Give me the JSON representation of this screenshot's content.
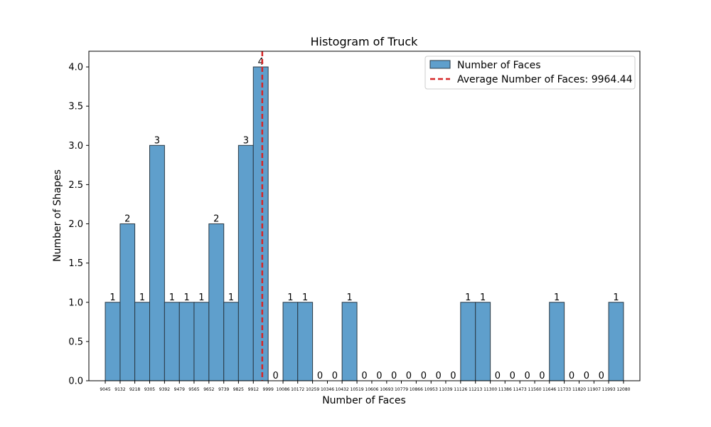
{
  "chart_data": {
    "type": "bar",
    "title": "Histogram of Truck",
    "xlabel": "Number of Faces",
    "ylabel": "Number of Shapes",
    "ylim": [
      0,
      4.2
    ],
    "yticks": [
      "0.0",
      "0.5",
      "1.0",
      "1.5",
      "2.0",
      "2.5",
      "3.0",
      "3.5",
      "4.0"
    ],
    "bin_edges": [
      9045,
      9132,
      9218,
      9305,
      9392,
      9479,
      9565,
      9652,
      9739,
      9825,
      9912,
      9999,
      10086,
      10172,
      10259,
      10346,
      10432,
      10519,
      10606,
      10693,
      10779,
      10866,
      10953,
      11039,
      11126,
      11213,
      11300,
      11386,
      11473,
      11560,
      11646,
      11733,
      11820,
      11907,
      11993,
      12080
    ],
    "values": [
      1,
      2,
      1,
      3,
      1,
      1,
      1,
      2,
      1,
      3,
      4,
      0,
      1,
      1,
      0,
      0,
      1,
      0,
      0,
      0,
      0,
      0,
      0,
      0,
      1,
      1,
      0,
      0,
      0,
      0,
      1,
      0,
      0,
      0,
      1
    ],
    "average": 9964.44,
    "bar_color": "#5f9fcc",
    "bar_edge_color": "#2a3a46",
    "average_line_color": "#d62728",
    "legend": {
      "placement": "top-right",
      "entries": [
        {
          "label": "Number of Faces"
        },
        {
          "label": "Average Number of Faces: 9964.44"
        }
      ]
    }
  }
}
